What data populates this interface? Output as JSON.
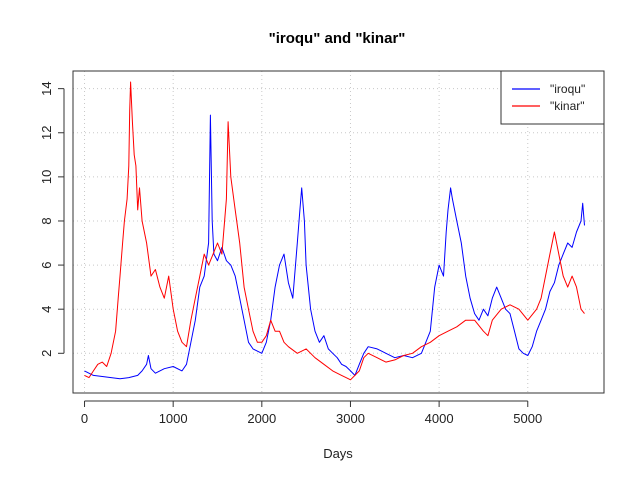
{
  "chart_data": {
    "type": "line",
    "title": "\"iroqu\" and \"kinar\"",
    "xlabel": "Days",
    "ylabel": "",
    "xlim": [
      -130,
      5860
    ],
    "ylim": [
      0.2,
      14.8
    ],
    "x_ticks": [
      0,
      1000,
      2000,
      3000,
      4000,
      5000
    ],
    "y_ticks": [
      2,
      4,
      6,
      8,
      10,
      12,
      14
    ],
    "grid": true,
    "legend_position": "top-right",
    "series": [
      {
        "name": "\"iroqu\"",
        "color": "#0000ff",
        "points": [
          [
            0,
            1.2
          ],
          [
            100,
            1.0
          ],
          [
            200,
            0.95
          ],
          [
            300,
            0.9
          ],
          [
            400,
            0.85
          ],
          [
            500,
            0.9
          ],
          [
            600,
            1.0
          ],
          [
            650,
            1.2
          ],
          [
            700,
            1.5
          ],
          [
            720,
            1.9
          ],
          [
            750,
            1.3
          ],
          [
            800,
            1.1
          ],
          [
            900,
            1.3
          ],
          [
            1000,
            1.4
          ],
          [
            1100,
            1.2
          ],
          [
            1150,
            1.5
          ],
          [
            1200,
            2.5
          ],
          [
            1250,
            3.5
          ],
          [
            1300,
            5.0
          ],
          [
            1350,
            5.5
          ],
          [
            1400,
            7.0
          ],
          [
            1420,
            12.8
          ],
          [
            1440,
            8.0
          ],
          [
            1460,
            6.5
          ],
          [
            1500,
            6.2
          ],
          [
            1550,
            6.8
          ],
          [
            1600,
            6.2
          ],
          [
            1650,
            6.0
          ],
          [
            1700,
            5.5
          ],
          [
            1750,
            4.5
          ],
          [
            1800,
            3.5
          ],
          [
            1850,
            2.5
          ],
          [
            1900,
            2.2
          ],
          [
            2000,
            2.0
          ],
          [
            2050,
            2.5
          ],
          [
            2100,
            3.5
          ],
          [
            2150,
            5.0
          ],
          [
            2200,
            6.0
          ],
          [
            2250,
            6.5
          ],
          [
            2300,
            5.2
          ],
          [
            2350,
            4.5
          ],
          [
            2400,
            7.0
          ],
          [
            2430,
            8.5
          ],
          [
            2450,
            9.5
          ],
          [
            2480,
            8.0
          ],
          [
            2500,
            6.0
          ],
          [
            2550,
            4.0
          ],
          [
            2600,
            3.0
          ],
          [
            2650,
            2.5
          ],
          [
            2700,
            2.8
          ],
          [
            2750,
            2.2
          ],
          [
            2800,
            2.0
          ],
          [
            2850,
            1.8
          ],
          [
            2900,
            1.5
          ],
          [
            2950,
            1.4
          ],
          [
            3000,
            1.2
          ],
          [
            3050,
            1.0
          ],
          [
            3100,
            1.5
          ],
          [
            3150,
            2.0
          ],
          [
            3200,
            2.3
          ],
          [
            3300,
            2.2
          ],
          [
            3400,
            2.0
          ],
          [
            3500,
            1.8
          ],
          [
            3600,
            1.9
          ],
          [
            3700,
            1.8
          ],
          [
            3800,
            2.0
          ],
          [
            3900,
            3.0
          ],
          [
            3950,
            5.0
          ],
          [
            4000,
            6.0
          ],
          [
            4050,
            5.5
          ],
          [
            4080,
            7.5
          ],
          [
            4100,
            8.5
          ],
          [
            4130,
            9.5
          ],
          [
            4150,
            9.0
          ],
          [
            4200,
            8.0
          ],
          [
            4250,
            7.0
          ],
          [
            4300,
            5.5
          ],
          [
            4350,
            4.5
          ],
          [
            4400,
            3.8
          ],
          [
            4450,
            3.5
          ],
          [
            4500,
            4.0
          ],
          [
            4550,
            3.7
          ],
          [
            4600,
            4.5
          ],
          [
            4650,
            5.0
          ],
          [
            4700,
            4.5
          ],
          [
            4750,
            4.0
          ],
          [
            4800,
            3.8
          ],
          [
            4850,
            3.0
          ],
          [
            4900,
            2.2
          ],
          [
            4950,
            2.0
          ],
          [
            5000,
            1.9
          ],
          [
            5050,
            2.3
          ],
          [
            5100,
            3.0
          ],
          [
            5150,
            3.5
          ],
          [
            5200,
            4.0
          ],
          [
            5250,
            4.8
          ],
          [
            5300,
            5.2
          ],
          [
            5350,
            6.0
          ],
          [
            5400,
            6.5
          ],
          [
            5450,
            7.0
          ],
          [
            5500,
            6.8
          ],
          [
            5550,
            7.5
          ],
          [
            5600,
            8.0
          ],
          [
            5620,
            8.8
          ],
          [
            5640,
            7.8
          ]
        ]
      },
      {
        "name": "\"kinar\"",
        "color": "#ff0000",
        "points": [
          [
            0,
            1.0
          ],
          [
            50,
            0.9
          ],
          [
            100,
            1.2
          ],
          [
            150,
            1.5
          ],
          [
            200,
            1.6
          ],
          [
            250,
            1.4
          ],
          [
            300,
            2.0
          ],
          [
            350,
            3.0
          ],
          [
            380,
            4.5
          ],
          [
            400,
            5.5
          ],
          [
            430,
            7.0
          ],
          [
            450,
            8.0
          ],
          [
            480,
            9.0
          ],
          [
            500,
            10.5
          ],
          [
            510,
            13.0
          ],
          [
            520,
            14.3
          ],
          [
            540,
            12.5
          ],
          [
            560,
            11.0
          ],
          [
            580,
            10.5
          ],
          [
            600,
            8.5
          ],
          [
            620,
            9.5
          ],
          [
            650,
            8.0
          ],
          [
            700,
            7.0
          ],
          [
            750,
            5.5
          ],
          [
            800,
            5.8
          ],
          [
            850,
            5.0
          ],
          [
            900,
            4.5
          ],
          [
            950,
            5.5
          ],
          [
            1000,
            4.0
          ],
          [
            1050,
            3.0
          ],
          [
            1100,
            2.5
          ],
          [
            1150,
            2.3
          ],
          [
            1200,
            3.5
          ],
          [
            1250,
            4.5
          ],
          [
            1300,
            5.5
          ],
          [
            1350,
            6.5
          ],
          [
            1400,
            6.0
          ],
          [
            1450,
            6.5
          ],
          [
            1500,
            7.0
          ],
          [
            1550,
            6.5
          ],
          [
            1600,
            9.0
          ],
          [
            1620,
            12.5
          ],
          [
            1650,
            10.0
          ],
          [
            1700,
            8.5
          ],
          [
            1750,
            7.0
          ],
          [
            1800,
            5.0
          ],
          [
            1850,
            4.0
          ],
          [
            1900,
            3.0
          ],
          [
            1950,
            2.5
          ],
          [
            2000,
            2.5
          ],
          [
            2050,
            2.8
          ],
          [
            2100,
            3.5
          ],
          [
            2150,
            3.0
          ],
          [
            2200,
            3.0
          ],
          [
            2250,
            2.5
          ],
          [
            2300,
            2.3
          ],
          [
            2400,
            2.0
          ],
          [
            2500,
            2.2
          ],
          [
            2600,
            1.8
          ],
          [
            2700,
            1.5
          ],
          [
            2800,
            1.2
          ],
          [
            2900,
            1.0
          ],
          [
            2950,
            0.9
          ],
          [
            3000,
            0.8
          ],
          [
            3050,
            1.0
          ],
          [
            3100,
            1.2
          ],
          [
            3150,
            1.8
          ],
          [
            3200,
            2.0
          ],
          [
            3300,
            1.8
          ],
          [
            3400,
            1.6
          ],
          [
            3500,
            1.7
          ],
          [
            3600,
            1.9
          ],
          [
            3700,
            2.0
          ],
          [
            3800,
            2.3
          ],
          [
            3900,
            2.5
          ],
          [
            4000,
            2.8
          ],
          [
            4100,
            3.0
          ],
          [
            4200,
            3.2
          ],
          [
            4300,
            3.5
          ],
          [
            4400,
            3.5
          ],
          [
            4500,
            3.0
          ],
          [
            4550,
            2.8
          ],
          [
            4600,
            3.5
          ],
          [
            4700,
            4.0
          ],
          [
            4800,
            4.2
          ],
          [
            4900,
            4.0
          ],
          [
            5000,
            3.5
          ],
          [
            5100,
            4.0
          ],
          [
            5150,
            4.5
          ],
          [
            5200,
            5.5
          ],
          [
            5250,
            6.5
          ],
          [
            5300,
            7.5
          ],
          [
            5350,
            6.5
          ],
          [
            5400,
            5.5
          ],
          [
            5450,
            5.0
          ],
          [
            5500,
            5.5
          ],
          [
            5550,
            5.0
          ],
          [
            5600,
            4.0
          ],
          [
            5640,
            3.8
          ]
        ]
      }
    ]
  }
}
